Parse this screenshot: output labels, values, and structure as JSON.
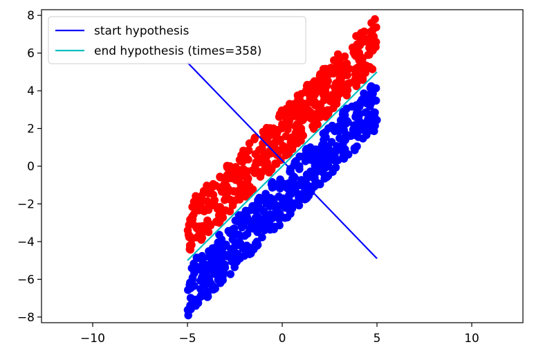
{
  "chart_data": {
    "type": "scatter",
    "xlim": [
      -12.7,
      12.7
    ],
    "ylim": [
      -8.3,
      8.3
    ],
    "x_ticks": [
      -10,
      -5,
      0,
      5,
      10
    ],
    "y_ticks": [
      -8,
      -6,
      -4,
      -2,
      0,
      2,
      4,
      6,
      8
    ],
    "x_tick_labels": [
      "−10",
      "−5",
      "0",
      "5",
      "10"
    ],
    "y_tick_labels": [
      "−8",
      "−6",
      "−4",
      "−2",
      "0",
      "2",
      "4",
      "6",
      "8"
    ],
    "grid": false,
    "legend_position": "top-left",
    "lines": [
      {
        "name": "start hypothesis",
        "color": "#0000ff",
        "x": [
          -5,
          5
        ],
        "y": [
          5.5,
          -4.9
        ]
      },
      {
        "name": "end hypothesis (times=358)",
        "color": "#00bfbf",
        "x": [
          -5,
          5
        ],
        "y": [
          -5.0,
          5.0
        ]
      }
    ],
    "scatter_series": [
      {
        "class": "positive",
        "color": "#ff0000",
        "x_range": [
          -5,
          5
        ],
        "slope": 1.0,
        "offset_range": [
          0.3,
          3.0
        ],
        "approx_count": 500
      },
      {
        "class": "negative",
        "color": "#0000ff",
        "x_range": [
          -5,
          5
        ],
        "slope": 1.0,
        "offset_range": [
          -3.0,
          -0.3
        ],
        "approx_count": 500
      }
    ]
  }
}
